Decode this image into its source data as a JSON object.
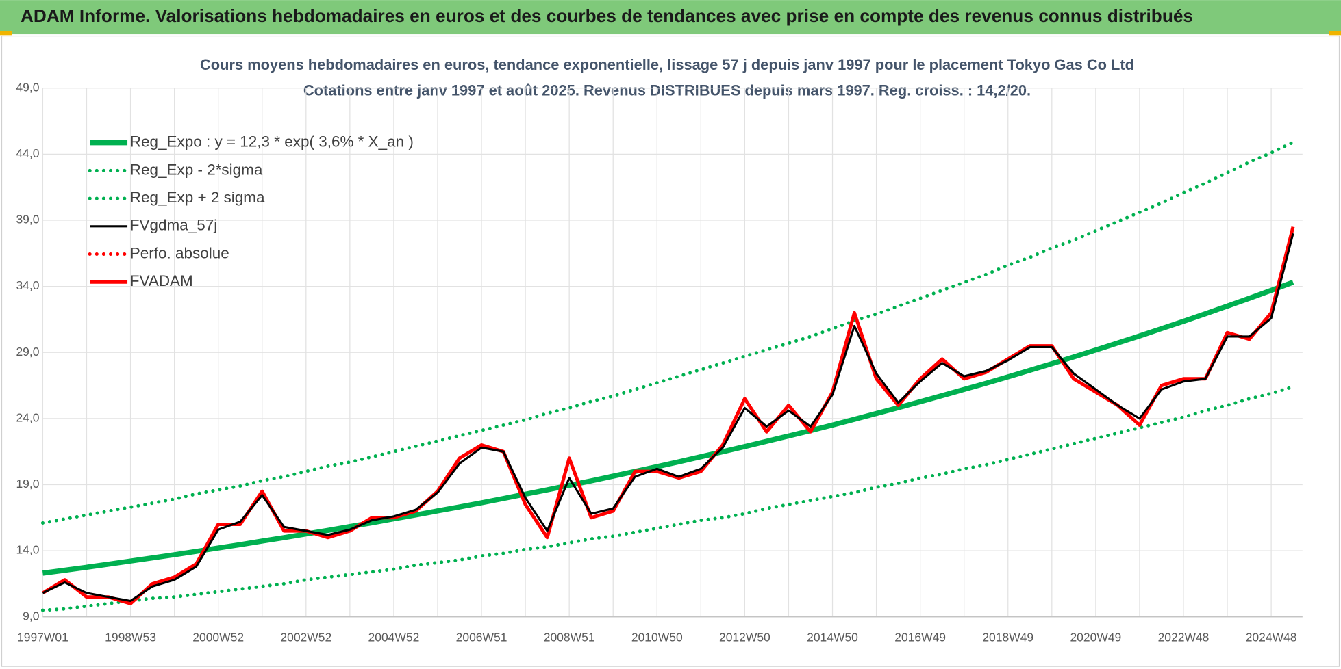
{
  "header": {
    "title": "ADAM Informe. Valorisations hebdomadaires en euros et des courbes de tendances avec prise en compte des revenus connus distribués"
  },
  "chart_data": {
    "type": "line",
    "title": "Cours moyens hebdomadaires en euros, tendance exponentielle, lissage 57 j depuis janv 1997 pour le placement Tokyo Gas Co Ltd",
    "subtitle": "Cotations entre janv 1997 et août 2025. Revenus DISTRIBUES depuis mars 1997. Reg. croiss. : 14,2/20.",
    "categories": [
      "1997W01",
      null,
      null,
      null,
      "1998W53",
      null,
      null,
      null,
      "2000W52",
      null,
      null,
      null,
      "2002W52",
      null,
      null,
      null,
      "2004W52",
      null,
      null,
      null,
      "2006W51",
      null,
      null,
      null,
      "2008W51",
      null,
      null,
      null,
      "2010W50",
      null,
      null,
      null,
      "2012W50",
      null,
      null,
      null,
      "2014W50",
      null,
      null,
      null,
      "2016W49",
      null,
      null,
      null,
      "2018W49",
      null,
      null,
      null,
      "2020W49",
      null,
      null,
      null,
      "2022W48",
      null,
      null,
      null,
      "2024W48",
      null
    ],
    "ylim": [
      9,
      49
    ],
    "yticks": [
      {
        "value": 9,
        "label": "9,0"
      },
      {
        "value": 14,
        "label": "14,0"
      },
      {
        "value": 19,
        "label": "19,0"
      },
      {
        "value": 24,
        "label": "24,0"
      },
      {
        "value": 29,
        "label": "29,0"
      },
      {
        "value": 34,
        "label": "34,0"
      },
      {
        "value": 39,
        "label": "39,0"
      },
      {
        "value": 44,
        "label": "44,0"
      },
      {
        "value": 49,
        "label": "49,0"
      }
    ],
    "grid": true,
    "legend": "top-left",
    "series": [
      {
        "name": "Reg_Expo : y = 12,3 * exp( 3,6% *  X_an )",
        "color": "#00b050",
        "style": "solid",
        "values": [
          12.3,
          12.52,
          12.75,
          12.98,
          13.22,
          13.46,
          13.7,
          13.95,
          14.21,
          14.46,
          14.73,
          14.99,
          15.27,
          15.54,
          15.83,
          16.11,
          16.41,
          16.7,
          17.01,
          17.31,
          17.63,
          17.95,
          18.28,
          18.61,
          18.95,
          19.29,
          19.64,
          20.0,
          20.36,
          20.73,
          21.11,
          21.49,
          21.88,
          22.28,
          22.68,
          23.09,
          23.51,
          23.94,
          24.38,
          24.82,
          25.27,
          25.73,
          26.2,
          26.67,
          27.15,
          27.65,
          28.15,
          28.66,
          29.18,
          29.71,
          30.25,
          30.8,
          31.36,
          31.93,
          32.51,
          33.1,
          33.7,
          34.31
        ]
      },
      {
        "name": "Reg_Exp - 2*sigma",
        "color": "#00b050",
        "style": "dotted",
        "values": [
          9.5,
          9.6,
          9.8,
          10.0,
          10.2,
          10.4,
          10.5,
          10.7,
          10.9,
          11.1,
          11.3,
          11.5,
          11.8,
          12.0,
          12.2,
          12.4,
          12.6,
          12.9,
          13.1,
          13.3,
          13.6,
          13.8,
          14.1,
          14.3,
          14.6,
          14.9,
          15.1,
          15.4,
          15.7,
          16.0,
          16.3,
          16.5,
          16.8,
          17.2,
          17.5,
          17.8,
          18.1,
          18.4,
          18.8,
          19.1,
          19.5,
          19.8,
          20.2,
          20.5,
          20.9,
          21.3,
          21.7,
          22.1,
          22.5,
          22.9,
          23.3,
          23.7,
          24.1,
          24.6,
          25.0,
          25.5,
          25.9,
          26.4
        ]
      },
      {
        "name": "Reg_Exp + 2 sigma",
        "color": "#00b050",
        "style": "dotted",
        "values": [
          16.1,
          16.4,
          16.7,
          17.0,
          17.3,
          17.6,
          17.9,
          18.3,
          18.6,
          18.9,
          19.3,
          19.6,
          20.0,
          20.4,
          20.7,
          21.1,
          21.5,
          21.9,
          22.3,
          22.7,
          23.1,
          23.5,
          23.9,
          24.4,
          24.8,
          25.3,
          25.7,
          26.2,
          26.7,
          27.2,
          27.7,
          28.2,
          28.7,
          29.2,
          29.7,
          30.2,
          30.8,
          31.4,
          31.9,
          32.5,
          33.1,
          33.7,
          34.3,
          34.9,
          35.6,
          36.2,
          36.9,
          37.5,
          38.2,
          38.9,
          39.6,
          40.3,
          41.1,
          41.8,
          42.6,
          43.4,
          44.1,
          44.9
        ]
      },
      {
        "name": "FVgdma_57j",
        "color": "#000000",
        "style": "thin",
        "values": [
          10.8,
          11.6,
          10.8,
          10.5,
          10.2,
          11.3,
          11.8,
          12.8,
          15.6,
          16.2,
          18.2,
          15.8,
          15.5,
          15.2,
          15.6,
          16.3,
          16.6,
          17.1,
          18.4,
          20.6,
          21.8,
          21.5,
          18.0,
          15.5,
          19.5,
          16.8,
          17.2,
          19.6,
          20.2,
          19.6,
          20.2,
          21.8,
          24.8,
          23.4,
          24.6,
          23.4,
          25.8,
          31.0,
          27.4,
          25.2,
          26.8,
          28.2,
          27.2,
          27.6,
          28.4,
          29.4,
          29.4,
          27.4,
          26.2,
          25.0,
          24.0,
          26.2,
          26.8,
          27.0,
          30.2,
          30.2,
          31.6,
          38.0
        ]
      },
      {
        "name": "Perfo. absolue",
        "color": "#ff0000",
        "style": "dotted"
      },
      {
        "name": "FVADAM",
        "color": "#ff0000",
        "style": "solid",
        "values": [
          10.8,
          11.8,
          10.5,
          10.5,
          10.0,
          11.5,
          12.0,
          13.0,
          16.0,
          16.0,
          18.5,
          15.5,
          15.5,
          15.0,
          15.5,
          16.5,
          16.5,
          17.0,
          18.5,
          21.0,
          22.0,
          21.5,
          17.5,
          15.0,
          21.0,
          16.5,
          17.0,
          20.0,
          20.0,
          19.5,
          20.0,
          22.0,
          25.5,
          23.0,
          25.0,
          23.0,
          26.0,
          32.0,
          27.0,
          25.0,
          27.0,
          28.5,
          27.0,
          27.5,
          28.5,
          29.5,
          29.5,
          27.0,
          26.0,
          25.0,
          23.5,
          26.5,
          27.0,
          27.0,
          30.5,
          30.0,
          32.0,
          38.5
        ]
      }
    ]
  }
}
